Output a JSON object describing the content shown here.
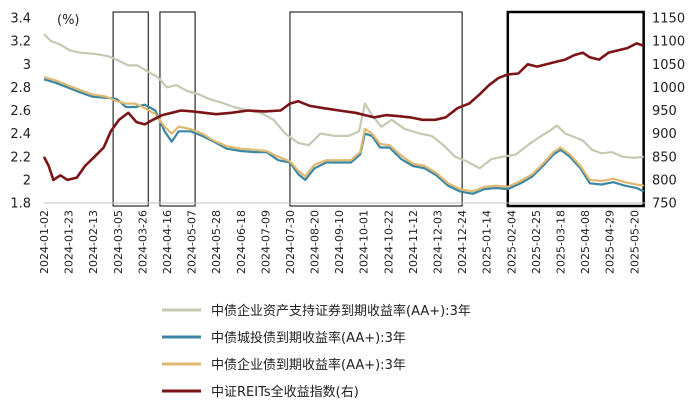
{
  "chart_data": {
    "type": "line",
    "y_unit_label": "(%)",
    "ylim_left": [
      1.8,
      3.4
    ],
    "yticks_left": [
      "1.8",
      "2",
      "2.2",
      "2.4",
      "2.6",
      "2.8",
      "3",
      "3.2",
      "3.4"
    ],
    "ylim_right": [
      750,
      1150
    ],
    "yticks_right": [
      "750",
      "800",
      "850",
      "900",
      "950",
      "1000",
      "1050",
      "1100",
      "1150"
    ],
    "xlim": [
      "2024-01-02",
      "2025-05-30"
    ],
    "x_tick_labels": [
      "2024-01-02",
      "2024-01-23",
      "2024-02-13",
      "2024-03-05",
      "2024-03-26",
      "2024-04-16",
      "2024-05-07",
      "2024-05-28",
      "2024-06-18",
      "2024-07-09",
      "2024-07-30",
      "2024-08-20",
      "2024-09-10",
      "2024-10-01",
      "2024-10-22",
      "2024-11-12",
      "2024-12-03",
      "2024-12-24",
      "2025-01-14",
      "2025-02-04",
      "2025-02-25",
      "2025-03-18",
      "2025-04-08",
      "2025-04-29",
      "2025-05-20"
    ],
    "grid": false,
    "legend_position": "bottom",
    "highlight_periods": [
      {
        "start": "2024-03-01",
        "end": "2024-03-31",
        "emphasis": false
      },
      {
        "start": "2024-04-10",
        "end": "2024-05-10",
        "emphasis": false
      },
      {
        "start": "2024-07-30",
        "end": "2024-12-24",
        "emphasis": false
      },
      {
        "start": "2025-02-01",
        "end": "2025-05-28",
        "emphasis": true
      }
    ],
    "series": [
      {
        "name": "中债企业资产支持证券到期收益率(AA+):3年",
        "axis": "left",
        "color": "#c4c9b2",
        "points": [
          [
            "2024-01-02",
            3.26
          ],
          [
            "2024-01-08",
            3.2
          ],
          [
            "2024-01-16",
            3.17
          ],
          [
            "2024-01-24",
            3.12
          ],
          [
            "2024-02-02",
            3.1
          ],
          [
            "2024-02-14",
            3.09
          ],
          [
            "2024-02-26",
            3.07
          ],
          [
            "2024-03-06",
            3.03
          ],
          [
            "2024-03-14",
            2.99
          ],
          [
            "2024-03-22",
            2.99
          ],
          [
            "2024-03-30",
            2.94
          ],
          [
            "2024-04-08",
            2.89
          ],
          [
            "2024-04-16",
            2.8
          ],
          [
            "2024-04-24",
            2.82
          ],
          [
            "2024-05-03",
            2.77
          ],
          [
            "2024-05-13",
            2.74
          ],
          [
            "2024-05-22",
            2.7
          ],
          [
            "2024-06-01",
            2.67
          ],
          [
            "2024-06-12",
            2.63
          ],
          [
            "2024-06-24",
            2.6
          ],
          [
            "2024-07-05",
            2.58
          ],
          [
            "2024-07-16",
            2.52
          ],
          [
            "2024-07-26",
            2.4
          ],
          [
            "2024-08-06",
            2.32
          ],
          [
            "2024-08-15",
            2.3
          ],
          [
            "2024-08-25",
            2.4
          ],
          [
            "2024-09-06",
            2.38
          ],
          [
            "2024-09-18",
            2.38
          ],
          [
            "2024-09-27",
            2.42
          ],
          [
            "2024-10-02",
            2.66
          ],
          [
            "2024-10-08",
            2.56
          ],
          [
            "2024-10-16",
            2.46
          ],
          [
            "2024-10-25",
            2.52
          ],
          [
            "2024-11-05",
            2.44
          ],
          [
            "2024-11-18",
            2.4
          ],
          [
            "2024-11-28",
            2.38
          ],
          [
            "2024-12-08",
            2.3
          ],
          [
            "2024-12-18",
            2.2
          ],
          [
            "2024-12-28",
            2.16
          ],
          [
            "2025-01-08",
            2.1
          ],
          [
            "2025-01-18",
            2.18
          ],
          [
            "2025-01-28",
            2.2
          ],
          [
            "2025-02-08",
            2.22
          ],
          [
            "2025-02-18",
            2.3
          ],
          [
            "2025-02-28",
            2.37
          ],
          [
            "2025-03-08",
            2.42
          ],
          [
            "2025-03-15",
            2.47
          ],
          [
            "2025-03-22",
            2.4
          ],
          [
            "2025-03-30",
            2.37
          ],
          [
            "2025-04-06",
            2.34
          ],
          [
            "2025-04-14",
            2.26
          ],
          [
            "2025-04-22",
            2.23
          ],
          [
            "2025-05-01",
            2.24
          ],
          [
            "2025-05-10",
            2.2
          ],
          [
            "2025-05-20",
            2.19
          ],
          [
            "2025-05-28",
            2.2
          ]
        ]
      },
      {
        "name": "中债城投债到期收益率(AA+):3年",
        "axis": "left",
        "color": "#3a86a3",
        "points": [
          [
            "2024-01-02",
            2.87
          ],
          [
            "2024-01-12",
            2.84
          ],
          [
            "2024-01-22",
            2.8
          ],
          [
            "2024-02-01",
            2.76
          ],
          [
            "2024-02-12",
            2.72
          ],
          [
            "2024-02-24",
            2.71
          ],
          [
            "2024-03-04",
            2.7
          ],
          [
            "2024-03-12",
            2.63
          ],
          [
            "2024-03-20",
            2.63
          ],
          [
            "2024-03-28",
            2.65
          ],
          [
            "2024-04-06",
            2.6
          ],
          [
            "2024-04-14",
            2.42
          ],
          [
            "2024-04-20",
            2.33
          ],
          [
            "2024-04-26",
            2.42
          ],
          [
            "2024-05-06",
            2.42
          ],
          [
            "2024-05-16",
            2.38
          ],
          [
            "2024-05-26",
            2.33
          ],
          [
            "2024-06-06",
            2.27
          ],
          [
            "2024-06-18",
            2.25
          ],
          [
            "2024-06-30",
            2.24
          ],
          [
            "2024-07-10",
            2.24
          ],
          [
            "2024-07-20",
            2.17
          ],
          [
            "2024-07-30",
            2.15
          ],
          [
            "2024-08-06",
            2.05
          ],
          [
            "2024-08-12",
            2.0
          ],
          [
            "2024-08-20",
            2.1
          ],
          [
            "2024-08-30",
            2.15
          ],
          [
            "2024-09-10",
            2.15
          ],
          [
            "2024-09-20",
            2.15
          ],
          [
            "2024-09-28",
            2.22
          ],
          [
            "2024-10-02",
            2.4
          ],
          [
            "2024-10-08",
            2.38
          ],
          [
            "2024-10-15",
            2.28
          ],
          [
            "2024-10-23",
            2.28
          ],
          [
            "2024-11-02",
            2.18
          ],
          [
            "2024-11-12",
            2.12
          ],
          [
            "2024-11-22",
            2.1
          ],
          [
            "2024-12-02",
            2.04
          ],
          [
            "2024-12-12",
            1.95
          ],
          [
            "2024-12-22",
            1.9
          ],
          [
            "2025-01-02",
            1.88
          ],
          [
            "2025-01-12",
            1.92
          ],
          [
            "2025-01-22",
            1.93
          ],
          [
            "2025-02-01",
            1.92
          ],
          [
            "2025-02-12",
            1.97
          ],
          [
            "2025-02-22",
            2.03
          ],
          [
            "2025-03-04",
            2.13
          ],
          [
            "2025-03-12",
            2.22
          ],
          [
            "2025-03-18",
            2.26
          ],
          [
            "2025-03-26",
            2.2
          ],
          [
            "2025-04-04",
            2.1
          ],
          [
            "2025-04-12",
            1.97
          ],
          [
            "2025-04-22",
            1.96
          ],
          [
            "2025-05-02",
            1.98
          ],
          [
            "2025-05-12",
            1.95
          ],
          [
            "2025-05-22",
            1.93
          ],
          [
            "2025-05-28",
            1.9
          ]
        ]
      },
      {
        "name": "中债企业债到期收益率(AA+):3年",
        "axis": "left",
        "color": "#e0b970",
        "points": [
          [
            "2024-01-02",
            2.89
          ],
          [
            "2024-01-12",
            2.86
          ],
          [
            "2024-01-22",
            2.82
          ],
          [
            "2024-02-01",
            2.78
          ],
          [
            "2024-02-12",
            2.74
          ],
          [
            "2024-02-24",
            2.72
          ],
          [
            "2024-03-04",
            2.68
          ],
          [
            "2024-03-12",
            2.66
          ],
          [
            "2024-03-20",
            2.66
          ],
          [
            "2024-03-28",
            2.62
          ],
          [
            "2024-04-06",
            2.57
          ],
          [
            "2024-04-14",
            2.46
          ],
          [
            "2024-04-20",
            2.4
          ],
          [
            "2024-04-26",
            2.46
          ],
          [
            "2024-05-06",
            2.44
          ],
          [
            "2024-05-16",
            2.4
          ],
          [
            "2024-05-26",
            2.34
          ],
          [
            "2024-06-06",
            2.29
          ],
          [
            "2024-06-18",
            2.27
          ],
          [
            "2024-06-30",
            2.26
          ],
          [
            "2024-07-10",
            2.25
          ],
          [
            "2024-07-20",
            2.2
          ],
          [
            "2024-07-30",
            2.16
          ],
          [
            "2024-08-06",
            2.08
          ],
          [
            "2024-08-12",
            2.03
          ],
          [
            "2024-08-20",
            2.13
          ],
          [
            "2024-08-30",
            2.17
          ],
          [
            "2024-09-10",
            2.17
          ],
          [
            "2024-09-20",
            2.17
          ],
          [
            "2024-09-28",
            2.24
          ],
          [
            "2024-10-02",
            2.44
          ],
          [
            "2024-10-08",
            2.4
          ],
          [
            "2024-10-15",
            2.31
          ],
          [
            "2024-10-23",
            2.3
          ],
          [
            "2024-11-02",
            2.21
          ],
          [
            "2024-11-12",
            2.14
          ],
          [
            "2024-11-22",
            2.12
          ],
          [
            "2024-12-02",
            2.06
          ],
          [
            "2024-12-12",
            1.97
          ],
          [
            "2024-12-22",
            1.92
          ],
          [
            "2025-01-02",
            1.9
          ],
          [
            "2025-01-12",
            1.94
          ],
          [
            "2025-01-22",
            1.95
          ],
          [
            "2025-02-01",
            1.94
          ],
          [
            "2025-02-12",
            1.99
          ],
          [
            "2025-02-22",
            2.05
          ],
          [
            "2025-03-04",
            2.15
          ],
          [
            "2025-03-12",
            2.24
          ],
          [
            "2025-03-18",
            2.28
          ],
          [
            "2025-03-26",
            2.22
          ],
          [
            "2025-04-04",
            2.12
          ],
          [
            "2025-04-12",
            2.0
          ],
          [
            "2025-04-22",
            1.99
          ],
          [
            "2025-05-02",
            2.01
          ],
          [
            "2025-05-12",
            1.98
          ],
          [
            "2025-05-22",
            1.96
          ],
          [
            "2025-05-28",
            1.95
          ]
        ]
      },
      {
        "name": "中证REITs全收益指数(右)",
        "axis": "right",
        "color": "#7b1416",
        "points": [
          [
            "2024-01-02",
            850
          ],
          [
            "2024-01-06",
            830
          ],
          [
            "2024-01-10",
            800
          ],
          [
            "2024-01-16",
            810
          ],
          [
            "2024-01-22",
            800
          ],
          [
            "2024-01-30",
            805
          ],
          [
            "2024-02-06",
            830
          ],
          [
            "2024-02-14",
            850
          ],
          [
            "2024-02-22",
            870
          ],
          [
            "2024-02-28",
            905
          ],
          [
            "2024-03-06",
            930
          ],
          [
            "2024-03-14",
            945
          ],
          [
            "2024-03-21",
            925
          ],
          [
            "2024-03-28",
            920
          ],
          [
            "2024-04-04",
            930
          ],
          [
            "2024-04-12",
            940
          ],
          [
            "2024-04-20",
            945
          ],
          [
            "2024-04-28",
            950
          ],
          [
            "2024-05-08",
            948
          ],
          [
            "2024-05-18",
            945
          ],
          [
            "2024-05-28",
            942
          ],
          [
            "2024-06-10",
            945
          ],
          [
            "2024-06-24",
            950
          ],
          [
            "2024-07-08",
            948
          ],
          [
            "2024-07-22",
            950
          ],
          [
            "2024-07-30",
            965
          ],
          [
            "2024-08-06",
            970
          ],
          [
            "2024-08-16",
            960
          ],
          [
            "2024-08-28",
            955
          ],
          [
            "2024-09-10",
            950
          ],
          [
            "2024-09-24",
            945
          ],
          [
            "2024-10-02",
            940
          ],
          [
            "2024-10-10",
            935
          ],
          [
            "2024-10-20",
            940
          ],
          [
            "2024-10-30",
            938
          ],
          [
            "2024-11-10",
            935
          ],
          [
            "2024-11-20",
            930
          ],
          [
            "2024-12-01",
            930
          ],
          [
            "2024-12-10",
            935
          ],
          [
            "2024-12-20",
            955
          ],
          [
            "2024-12-30",
            965
          ],
          [
            "2025-01-08",
            985
          ],
          [
            "2025-01-16",
            1005
          ],
          [
            "2025-01-24",
            1020
          ],
          [
            "2025-02-01",
            1028
          ],
          [
            "2025-02-10",
            1030
          ],
          [
            "2025-02-18",
            1050
          ],
          [
            "2025-02-26",
            1045
          ],
          [
            "2025-03-06",
            1050
          ],
          [
            "2025-03-14",
            1055
          ],
          [
            "2025-03-22",
            1060
          ],
          [
            "2025-03-30",
            1070
          ],
          [
            "2025-04-06",
            1075
          ],
          [
            "2025-04-12",
            1065
          ],
          [
            "2025-04-20",
            1060
          ],
          [
            "2025-04-28",
            1075
          ],
          [
            "2025-05-06",
            1080
          ],
          [
            "2025-05-14",
            1085
          ],
          [
            "2025-05-22",
            1095
          ],
          [
            "2025-05-28",
            1090
          ]
        ]
      }
    ]
  }
}
